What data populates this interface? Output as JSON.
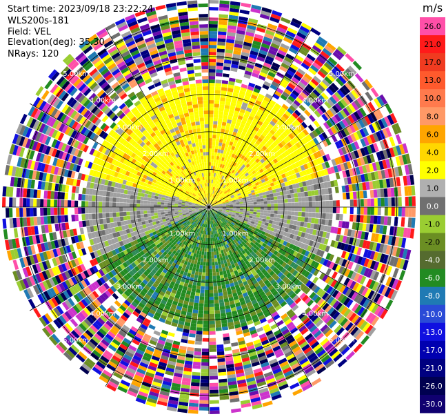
{
  "header": {
    "start_time": "Start time: 2023/09/18 23:22:24",
    "instrument": "WLS200s-181",
    "field": "Field: VEL",
    "elevation": "Elevation(deg): 35.30",
    "nrays": "NRays: 120"
  },
  "chart_data": {
    "type": "heatmap",
    "projection": "polar-ppi",
    "field": "VEL",
    "units": "m/s",
    "nrays": 120,
    "range_rings_km": [
      1,
      2,
      3,
      4,
      5
    ],
    "ring_labels": [
      "1.00km",
      "2.00km",
      "3.00km",
      "4.00km",
      "5.00km"
    ],
    "max_range_km": 5.5,
    "spokes_deg": [
      0,
      30,
      60,
      90,
      120,
      150,
      180,
      210,
      240,
      270,
      300,
      330
    ],
    "colorbar": {
      "label": "m/s",
      "ticks": [
        "26.0",
        "21.0",
        "17.0",
        "13.0",
        "10.0",
        "8.0",
        "6.0",
        "4.0",
        "2.0",
        "1.0",
        "0.0",
        "-1.0",
        "-2.0",
        "-4.0",
        "-6.0",
        "-8.0",
        "-10.0",
        "-13.0",
        "-17.0",
        "-21.0",
        "-26.0",
        "-30.0"
      ],
      "colors": [
        "#ff4fa8",
        "#ff1a1a",
        "#f03b20",
        "#ff5a2d",
        "#ff7a4d",
        "#ff9966",
        "#ffa500",
        "#ffd700",
        "#ffff00",
        "#b0b0b0",
        "#707070",
        "#9acd32",
        "#6b8e23",
        "#556b2f",
        "#228b22",
        "#1f7ab4",
        "#2a4bd7",
        "#1010e0",
        "#0000b0",
        "#000080",
        "#000050",
        "#100070"
      ]
    },
    "sectors": {
      "north_inner": "2.0 to 6.0 m/s (yellow/orange)",
      "east_west": "-1.0 to 1.0 m/s (gray)",
      "south_inner": "-2.0 to -8.0 m/s (green)"
    }
  }
}
